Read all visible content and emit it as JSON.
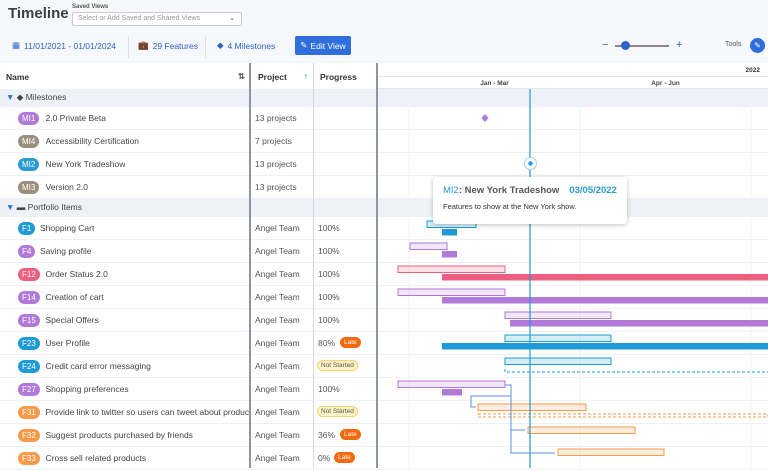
{
  "header": {
    "title": "Timeline",
    "saved_views_label": "Saved Views",
    "saved_views_placeholder": "Select or Add Saved and Shared Views",
    "date_range": "11/01/2021 - 01/01/2024",
    "features": "29 Features",
    "milestones": "4 Milestones",
    "edit_view": "Edit View",
    "zoom_minus": "−",
    "zoom_plus": "+",
    "zoom_level": 0.15,
    "tools": "Tools"
  },
  "columns": {
    "name": "Name",
    "project": "Project",
    "progress": "Progress"
  },
  "timeline": {
    "year": "2022",
    "quarters": [
      "Jan - Mar",
      "Apr - Jun"
    ]
  },
  "colors": {
    "accent": "#2f6fdc",
    "today": "#1e9ad6",
    "late": "#f2690f"
  },
  "groups": [
    {
      "label": "Milestones",
      "items": [
        {
          "id": "MI1",
          "name": "2.0 Private Beta",
          "project": "13 projects",
          "color": "#b07ad8"
        },
        {
          "id": "MI4",
          "name": "Accessibility Certification",
          "project": "7 projects",
          "color": "#9a8f7c"
        },
        {
          "id": "MI2",
          "name": "New York Tradeshow",
          "project": "13 projects",
          "color": "#2a9ad6"
        },
        {
          "id": "MI3",
          "name": "Version 2.0",
          "project": "13 projects",
          "color": "#9a8f7c"
        }
      ]
    },
    {
      "label": "Portfolio Items",
      "items": [
        {
          "id": "F1",
          "name": "Shopping Cart",
          "project": "Angel Team",
          "progress": "100%",
          "color": "#1e9ad6"
        },
        {
          "id": "F4",
          "name": "Saving profile",
          "project": "Angel Team",
          "progress": "100%",
          "color": "#b07ad8"
        },
        {
          "id": "F12",
          "name": "Order Status 2.0",
          "project": "Angel Team",
          "progress": "100%",
          "color": "#ec5f7e"
        },
        {
          "id": "F14",
          "name": "Creation of cart",
          "project": "Angel Team",
          "progress": "100%",
          "color": "#b07ad8"
        },
        {
          "id": "F15",
          "name": "Special Offers",
          "project": "Angel Team",
          "progress": "100%",
          "color": "#b07ad8"
        },
        {
          "id": "F23",
          "name": "User Profile",
          "project": "Angel Team",
          "progress": "80%",
          "status": "Late",
          "color": "#1e9ad6"
        },
        {
          "id": "F24",
          "name": "Credit card error messaging",
          "project": "Angel Team",
          "status": "Not Started",
          "color": "#1e9ad6"
        },
        {
          "id": "F27",
          "name": "Shopping preferences",
          "project": "Angel Team",
          "progress": "100%",
          "color": "#b07ad8"
        },
        {
          "id": "F31",
          "name": "Provide link to twitter so users can tweet about products",
          "project": "Angel Team",
          "status": "Not Started",
          "color": "#f79a4a"
        },
        {
          "id": "F32",
          "name": "Suggest products purchased by friends",
          "project": "Angel Team",
          "progress": "36%",
          "status": "Late",
          "color": "#f79a4a"
        },
        {
          "id": "F33",
          "name": "Cross sell related products",
          "project": "Angel Team",
          "progress": "0%",
          "status": "Late",
          "color": "#f79a4a"
        }
      ]
    }
  ],
  "tooltip": {
    "id": "MI2",
    "title": ": New York Tradeshow",
    "date": "03/05/2022",
    "description": "Features to show at the New York show."
  }
}
